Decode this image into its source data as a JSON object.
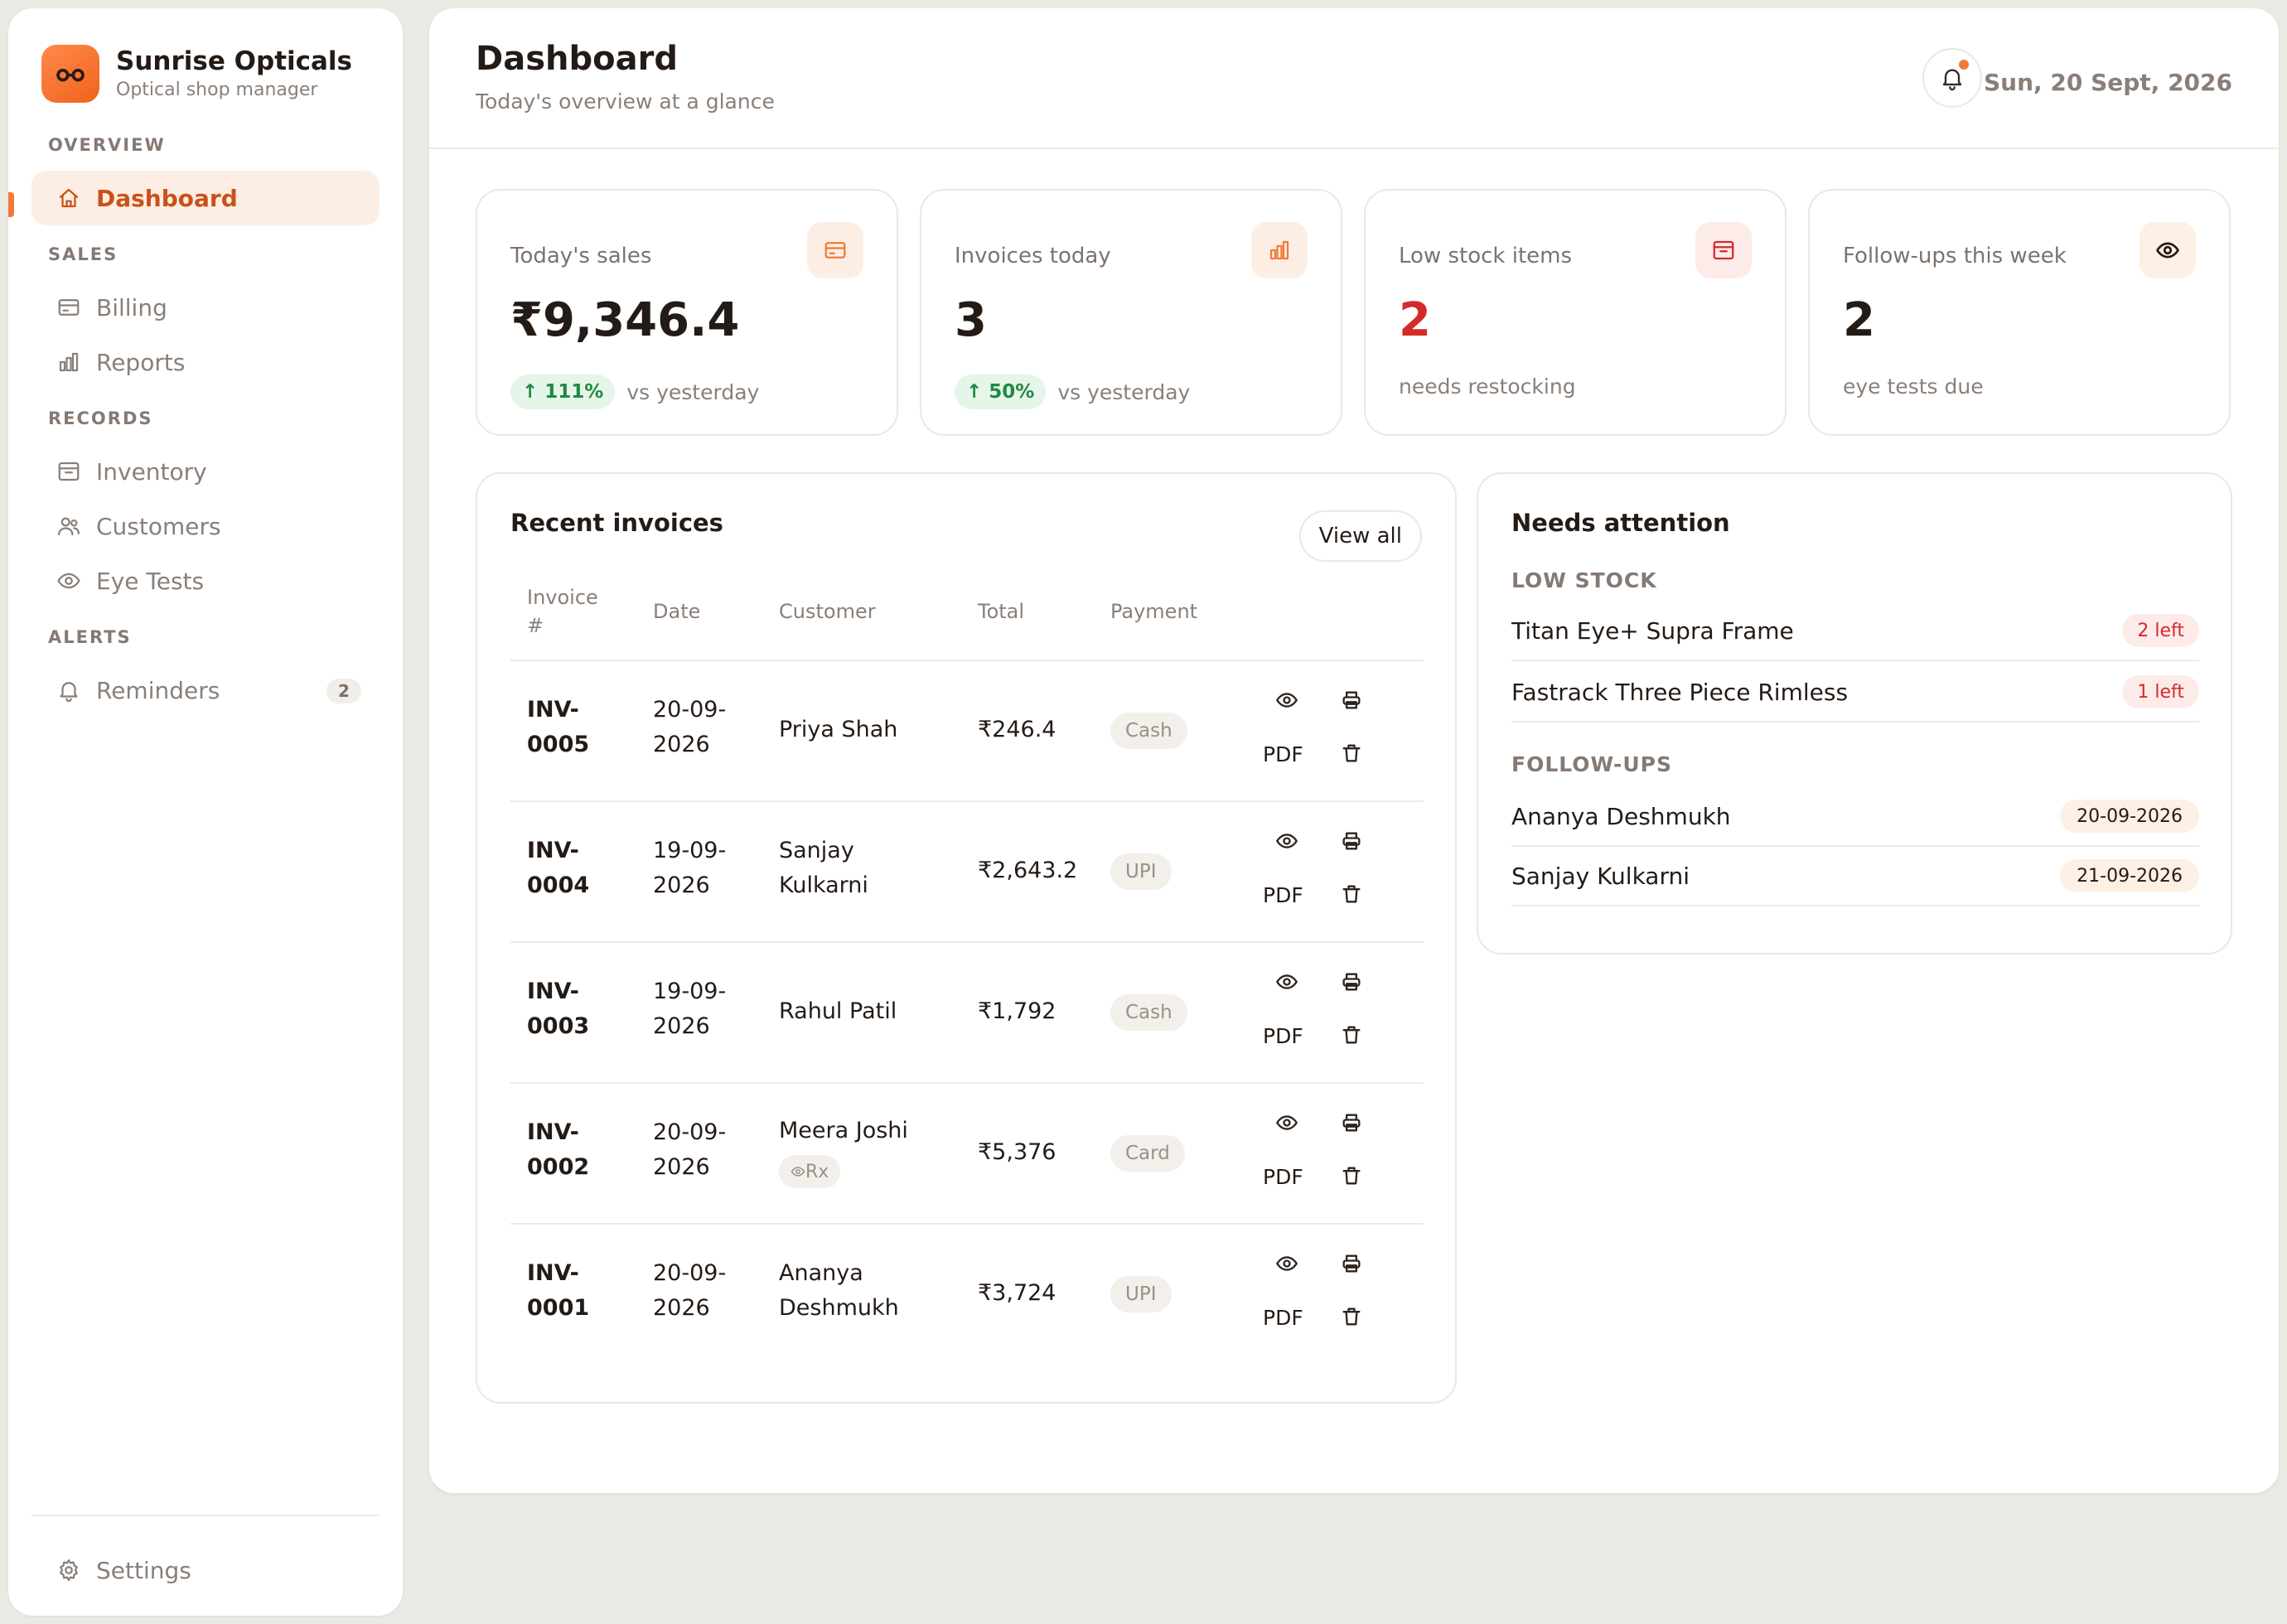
{
  "brand": {
    "name": "Sunrise Opticals",
    "subtitle": "Optical shop manager",
    "logo_icon": "glasses-icon"
  },
  "colors": {
    "accent": "#f07b36",
    "accent_dark": "#c9521a",
    "positive": "#1f8a43",
    "danger": "#d42a2a",
    "background": "#ebe9e4"
  },
  "sidebar": {
    "sections": [
      {
        "label": "OVERVIEW",
        "items": [
          {
            "label": "Dashboard",
            "icon": "home-icon",
            "active": true
          }
        ]
      },
      {
        "label": "SALES",
        "items": [
          {
            "label": "Billing",
            "icon": "credit-card-icon"
          },
          {
            "label": "Reports",
            "icon": "bar-chart-icon"
          }
        ]
      },
      {
        "label": "RECORDS",
        "items": [
          {
            "label": "Inventory",
            "icon": "archive-icon"
          },
          {
            "label": "Customers",
            "icon": "users-icon"
          },
          {
            "label": "Eye Tests",
            "icon": "eye-icon"
          }
        ]
      },
      {
        "label": "ALERTS",
        "items": [
          {
            "label": "Reminders",
            "icon": "bell-icon",
            "badge": "2"
          }
        ]
      }
    ],
    "footer": {
      "label": "Settings",
      "icon": "gear-icon"
    }
  },
  "header": {
    "title": "Dashboard",
    "subtitle": "Today's overview at a glance",
    "date": "Sun, 20 Sept, 2026",
    "notification_icon": "bell-icon"
  },
  "stats": [
    {
      "label": "Today's sales",
      "value": "₹9,346.4",
      "trend": "↑ 111%",
      "note": "vs yesterday",
      "icon": "credit-card-icon"
    },
    {
      "label": "Invoices today",
      "value": "3",
      "trend": "↑ 50%",
      "note": "vs yesterday",
      "icon": "bar-chart-icon"
    },
    {
      "label": "Low stock items",
      "value": "2",
      "note": "needs restocking",
      "icon": "archive-icon"
    },
    {
      "label": "Follow-ups this week",
      "value": "2",
      "note": "eye tests due",
      "icon": "eye-icon"
    }
  ],
  "invoices": {
    "title": "Recent invoices",
    "view_all": "View all",
    "columns": [
      "Invoice #",
      "Date",
      "Customer",
      "Total",
      "Payment"
    ],
    "pdf_label": "PDF",
    "rx_label": "Rx",
    "rows": [
      {
        "number": "INV-0005",
        "date": "20-09-2026",
        "customer": "Priya Shah",
        "total": "₹246.4",
        "payment": "Cash"
      },
      {
        "number": "INV-0004",
        "date": "19-09-2026",
        "customer": "Sanjay Kulkarni",
        "total": "₹2,643.2",
        "payment": "UPI"
      },
      {
        "number": "INV-0003",
        "date": "19-09-2026",
        "customer": "Rahul Patil",
        "total": "₹1,792",
        "payment": "Cash"
      },
      {
        "number": "INV-0002",
        "date": "20-09-2026",
        "customer": "Meera Joshi",
        "total": "₹5,376",
        "payment": "Card",
        "rx": true
      },
      {
        "number": "INV-0001",
        "date": "20-09-2026",
        "customer": "Ananya Deshmukh",
        "total": "₹3,724",
        "payment": "UPI"
      }
    ]
  },
  "attention": {
    "title": "Needs attention",
    "low_stock_label": "LOW STOCK",
    "low_stock": [
      {
        "name": "Titan Eye+ Supra Frame",
        "left": "2 left"
      },
      {
        "name": "Fastrack Three Piece Rimless",
        "left": "1 left"
      }
    ],
    "followups_label": "FOLLOW-UPS",
    "followups": [
      {
        "name": "Ananya Deshmukh",
        "date": "20-09-2026"
      },
      {
        "name": "Sanjay Kulkarni",
        "date": "21-09-2026"
      }
    ]
  }
}
